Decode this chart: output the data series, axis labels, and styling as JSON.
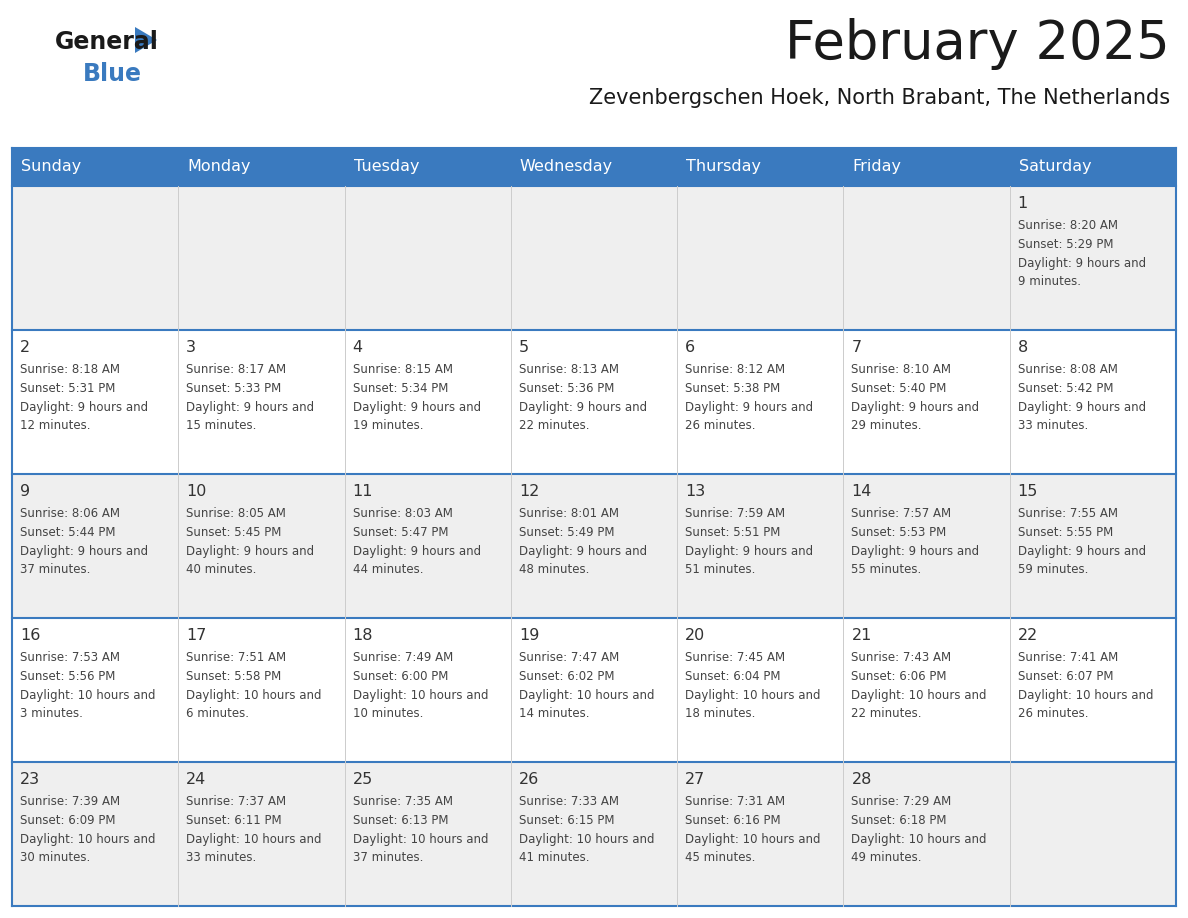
{
  "title": "February 2025",
  "subtitle": "Zevenbergschen Hoek, North Brabant, The Netherlands",
  "header_color": "#3a7abf",
  "header_text_color": "#ffffff",
  "day_names": [
    "Sunday",
    "Monday",
    "Tuesday",
    "Wednesday",
    "Thursday",
    "Friday",
    "Saturday"
  ],
  "alt_row_color": "#efefef",
  "white_color": "#ffffff",
  "border_color": "#3a7abf",
  "text_color": "#444444",
  "date_color": "#333333",
  "days": [
    {
      "day": 1,
      "col": 6,
      "row": 0,
      "sunrise": "8:20 AM",
      "sunset": "5:29 PM",
      "daylight": "9 hours and 9 minutes"
    },
    {
      "day": 2,
      "col": 0,
      "row": 1,
      "sunrise": "8:18 AM",
      "sunset": "5:31 PM",
      "daylight": "9 hours and 12 minutes"
    },
    {
      "day": 3,
      "col": 1,
      "row": 1,
      "sunrise": "8:17 AM",
      "sunset": "5:33 PM",
      "daylight": "9 hours and 15 minutes"
    },
    {
      "day": 4,
      "col": 2,
      "row": 1,
      "sunrise": "8:15 AM",
      "sunset": "5:34 PM",
      "daylight": "9 hours and 19 minutes"
    },
    {
      "day": 5,
      "col": 3,
      "row": 1,
      "sunrise": "8:13 AM",
      "sunset": "5:36 PM",
      "daylight": "9 hours and 22 minutes"
    },
    {
      "day": 6,
      "col": 4,
      "row": 1,
      "sunrise": "8:12 AM",
      "sunset": "5:38 PM",
      "daylight": "9 hours and 26 minutes"
    },
    {
      "day": 7,
      "col": 5,
      "row": 1,
      "sunrise": "8:10 AM",
      "sunset": "5:40 PM",
      "daylight": "9 hours and 29 minutes"
    },
    {
      "day": 8,
      "col": 6,
      "row": 1,
      "sunrise": "8:08 AM",
      "sunset": "5:42 PM",
      "daylight": "9 hours and 33 minutes"
    },
    {
      "day": 9,
      "col": 0,
      "row": 2,
      "sunrise": "8:06 AM",
      "sunset": "5:44 PM",
      "daylight": "9 hours and 37 minutes"
    },
    {
      "day": 10,
      "col": 1,
      "row": 2,
      "sunrise": "8:05 AM",
      "sunset": "5:45 PM",
      "daylight": "9 hours and 40 minutes"
    },
    {
      "day": 11,
      "col": 2,
      "row": 2,
      "sunrise": "8:03 AM",
      "sunset": "5:47 PM",
      "daylight": "9 hours and 44 minutes"
    },
    {
      "day": 12,
      "col": 3,
      "row": 2,
      "sunrise": "8:01 AM",
      "sunset": "5:49 PM",
      "daylight": "9 hours and 48 minutes"
    },
    {
      "day": 13,
      "col": 4,
      "row": 2,
      "sunrise": "7:59 AM",
      "sunset": "5:51 PM",
      "daylight": "9 hours and 51 minutes"
    },
    {
      "day": 14,
      "col": 5,
      "row": 2,
      "sunrise": "7:57 AM",
      "sunset": "5:53 PM",
      "daylight": "9 hours and 55 minutes"
    },
    {
      "day": 15,
      "col": 6,
      "row": 2,
      "sunrise": "7:55 AM",
      "sunset": "5:55 PM",
      "daylight": "9 hours and 59 minutes"
    },
    {
      "day": 16,
      "col": 0,
      "row": 3,
      "sunrise": "7:53 AM",
      "sunset": "5:56 PM",
      "daylight": "10 hours and 3 minutes"
    },
    {
      "day": 17,
      "col": 1,
      "row": 3,
      "sunrise": "7:51 AM",
      "sunset": "5:58 PM",
      "daylight": "10 hours and 6 minutes"
    },
    {
      "day": 18,
      "col": 2,
      "row": 3,
      "sunrise": "7:49 AM",
      "sunset": "6:00 PM",
      "daylight": "10 hours and 10 minutes"
    },
    {
      "day": 19,
      "col": 3,
      "row": 3,
      "sunrise": "7:47 AM",
      "sunset": "6:02 PM",
      "daylight": "10 hours and 14 minutes"
    },
    {
      "day": 20,
      "col": 4,
      "row": 3,
      "sunrise": "7:45 AM",
      "sunset": "6:04 PM",
      "daylight": "10 hours and 18 minutes"
    },
    {
      "day": 21,
      "col": 5,
      "row": 3,
      "sunrise": "7:43 AM",
      "sunset": "6:06 PM",
      "daylight": "10 hours and 22 minutes"
    },
    {
      "day": 22,
      "col": 6,
      "row": 3,
      "sunrise": "7:41 AM",
      "sunset": "6:07 PM",
      "daylight": "10 hours and 26 minutes"
    },
    {
      "day": 23,
      "col": 0,
      "row": 4,
      "sunrise": "7:39 AM",
      "sunset": "6:09 PM",
      "daylight": "10 hours and 30 minutes"
    },
    {
      "day": 24,
      "col": 1,
      "row": 4,
      "sunrise": "7:37 AM",
      "sunset": "6:11 PM",
      "daylight": "10 hours and 33 minutes"
    },
    {
      "day": 25,
      "col": 2,
      "row": 4,
      "sunrise": "7:35 AM",
      "sunset": "6:13 PM",
      "daylight": "10 hours and 37 minutes"
    },
    {
      "day": 26,
      "col": 3,
      "row": 4,
      "sunrise": "7:33 AM",
      "sunset": "6:15 PM",
      "daylight": "10 hours and 41 minutes"
    },
    {
      "day": 27,
      "col": 4,
      "row": 4,
      "sunrise": "7:31 AM",
      "sunset": "6:16 PM",
      "daylight": "10 hours and 45 minutes"
    },
    {
      "day": 28,
      "col": 5,
      "row": 4,
      "sunrise": "7:29 AM",
      "sunset": "6:18 PM",
      "daylight": "10 hours and 49 minutes"
    }
  ]
}
